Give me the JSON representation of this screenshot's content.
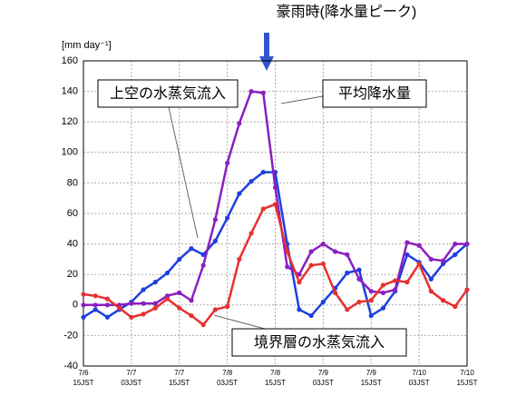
{
  "chart_data": {
    "type": "line",
    "annotation": "豪雨時(降水量ピーク)",
    "y_label": "[mm day⁻¹]",
    "x": [
      0,
      3,
      6,
      9,
      12,
      15,
      18,
      21,
      24,
      27,
      30,
      33,
      36,
      39,
      42,
      45,
      48,
      51,
      54,
      57,
      60,
      63,
      66,
      69,
      72,
      75,
      78,
      81,
      84,
      87,
      90,
      93,
      96
    ],
    "xlim": [
      0,
      96
    ],
    "xticks": [
      {
        "value": 0,
        "label": [
          "7/6",
          "15JST"
        ]
      },
      {
        "value": 12,
        "label": [
          "7/7",
          "03JST"
        ]
      },
      {
        "value": 24,
        "label": [
          "7/7",
          "15JST"
        ]
      },
      {
        "value": 36,
        "label": [
          "7/8",
          "03JST"
        ]
      },
      {
        "value": 48,
        "label": [
          "7/8",
          "15JST"
        ]
      },
      {
        "value": 60,
        "label": [
          "7/9",
          "03JST"
        ]
      },
      {
        "value": 72,
        "label": [
          "7/9",
          "15JST"
        ]
      },
      {
        "value": 84,
        "label": [
          "7/10",
          "03JST"
        ]
      },
      {
        "value": 96,
        "label": [
          "7/10",
          "15JST"
        ]
      }
    ],
    "ylim": [
      -40,
      160
    ],
    "yticks": [
      -40,
      -20,
      0,
      20,
      40,
      60,
      80,
      100,
      120,
      140,
      160
    ],
    "grid": true,
    "series": [
      {
        "name": "上空の水蒸気流入",
        "color": "#1f3fe0",
        "values": [
          -8,
          -3,
          -8,
          -3,
          2,
          10,
          15,
          21,
          30,
          37,
          33,
          42,
          57,
          73,
          81,
          87,
          87,
          40,
          -3,
          -7,
          2,
          11,
          21,
          23,
          -7,
          -2,
          9,
          33,
          28,
          17,
          27,
          33,
          40
        ]
      },
      {
        "name": "平均降水量",
        "color": "#8a1fc0",
        "values": [
          0,
          0,
          0,
          0,
          1,
          1,
          1,
          6,
          8,
          3,
          26,
          56,
          93,
          119,
          140,
          139,
          77,
          25,
          20,
          35,
          40,
          35,
          33,
          17,
          9,
          8,
          10,
          41,
          39,
          30,
          29,
          40,
          40
        ]
      },
      {
        "name": "境界層の水蒸気流入",
        "color": "#e83030",
        "values": [
          7,
          6,
          4,
          -2,
          -8,
          -6,
          -2,
          4,
          -2,
          -7,
          -13,
          -3,
          -1,
          30,
          47,
          63,
          66,
          35,
          15,
          26,
          27,
          8,
          -3,
          2,
          3,
          13,
          16,
          15,
          27,
          9,
          3,
          -1,
          10
        ]
      }
    ]
  }
}
